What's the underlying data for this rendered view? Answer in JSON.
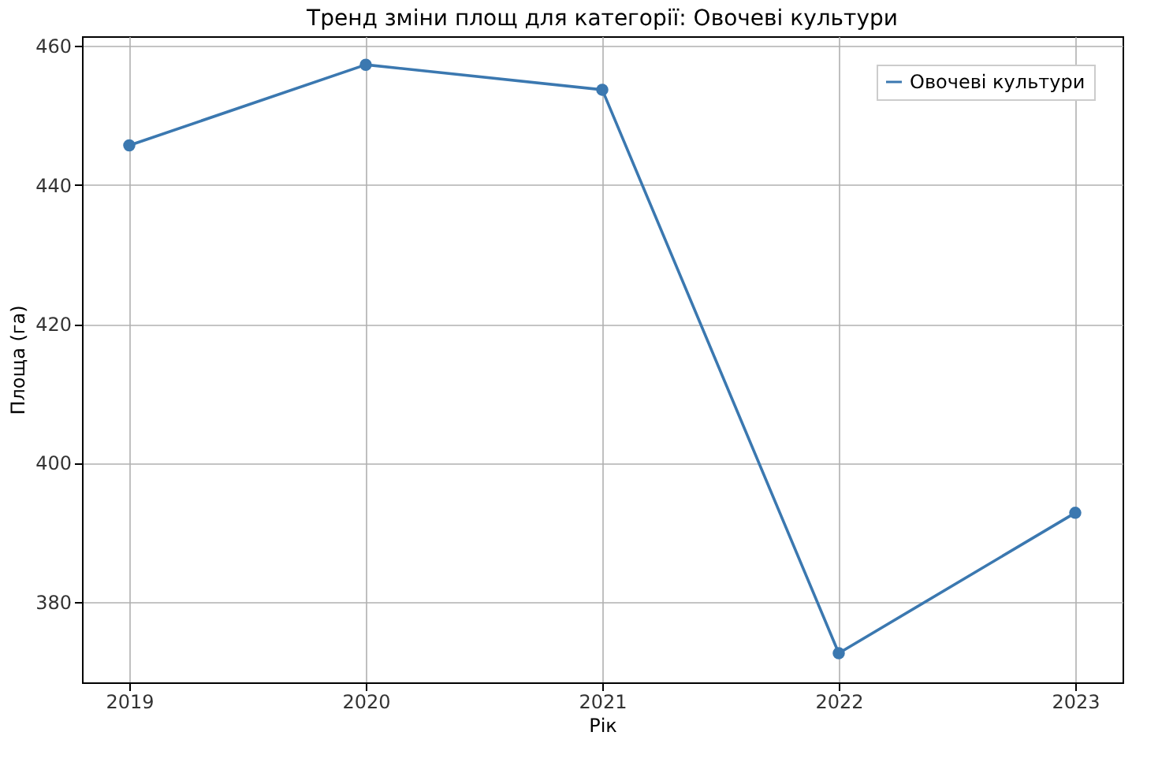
{
  "chart_data": {
    "type": "line",
    "title": "Тренд зміни площ для категорії: Овочеві культури",
    "xlabel": "Рік",
    "ylabel": "Площа (га)",
    "x": [
      2019,
      2020,
      2021,
      2022,
      2023
    ],
    "series": [
      {
        "name": "Овочеві культури",
        "color": "#3b78b0",
        "values": [
          445.7,
          457.3,
          453.7,
          372.6,
          392.8
        ]
      }
    ],
    "xlim": [
      2018.8,
      2023.2
    ],
    "xticks": [
      2019,
      2020,
      2021,
      2022,
      2023
    ],
    "ylim": [
      368.4,
      461.4
    ],
    "yticks": [
      380,
      400,
      420,
      440,
      460
    ],
    "grid": true,
    "legend": "top right",
    "marker": "circle",
    "line_style": "solid"
  }
}
